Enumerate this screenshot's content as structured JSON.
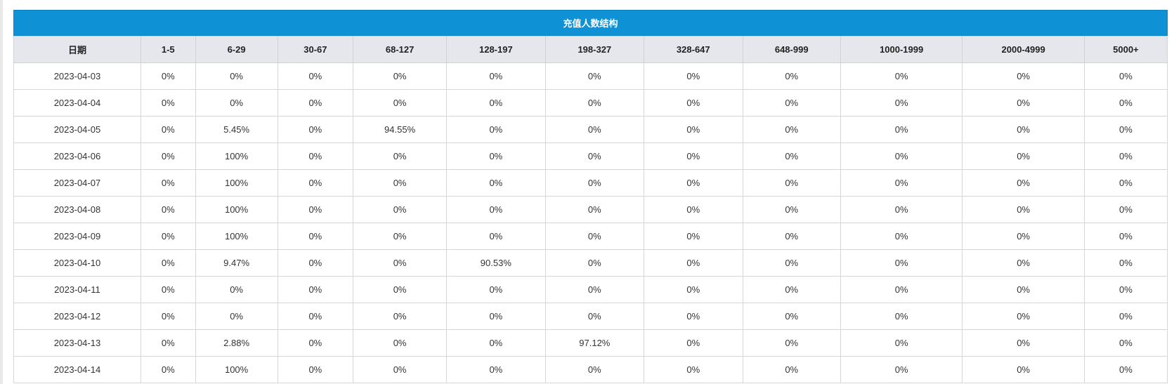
{
  "table": {
    "title": "充值人数结构",
    "headers": [
      "日期",
      "1-5",
      "6-29",
      "30-67",
      "68-127",
      "128-197",
      "198-327",
      "328-647",
      "648-999",
      "1000-1999",
      "2000-4999",
      "5000+"
    ],
    "rows": [
      [
        "2023-04-03",
        "0%",
        "0%",
        "0%",
        "0%",
        "0%",
        "0%",
        "0%",
        "0%",
        "0%",
        "0%",
        "0%"
      ],
      [
        "2023-04-04",
        "0%",
        "0%",
        "0%",
        "0%",
        "0%",
        "0%",
        "0%",
        "0%",
        "0%",
        "0%",
        "0%"
      ],
      [
        "2023-04-05",
        "0%",
        "5.45%",
        "0%",
        "94.55%",
        "0%",
        "0%",
        "0%",
        "0%",
        "0%",
        "0%",
        "0%"
      ],
      [
        "2023-04-06",
        "0%",
        "100%",
        "0%",
        "0%",
        "0%",
        "0%",
        "0%",
        "0%",
        "0%",
        "0%",
        "0%"
      ],
      [
        "2023-04-07",
        "0%",
        "100%",
        "0%",
        "0%",
        "0%",
        "0%",
        "0%",
        "0%",
        "0%",
        "0%",
        "0%"
      ],
      [
        "2023-04-08",
        "0%",
        "100%",
        "0%",
        "0%",
        "0%",
        "0%",
        "0%",
        "0%",
        "0%",
        "0%",
        "0%"
      ],
      [
        "2023-04-09",
        "0%",
        "100%",
        "0%",
        "0%",
        "0%",
        "0%",
        "0%",
        "0%",
        "0%",
        "0%",
        "0%"
      ],
      [
        "2023-04-10",
        "0%",
        "9.47%",
        "0%",
        "0%",
        "90.53%",
        "0%",
        "0%",
        "0%",
        "0%",
        "0%",
        "0%"
      ],
      [
        "2023-04-11",
        "0%",
        "0%",
        "0%",
        "0%",
        "0%",
        "0%",
        "0%",
        "0%",
        "0%",
        "0%",
        "0%"
      ],
      [
        "2023-04-12",
        "0%",
        "0%",
        "0%",
        "0%",
        "0%",
        "0%",
        "0%",
        "0%",
        "0%",
        "0%",
        "0%"
      ],
      [
        "2023-04-13",
        "0%",
        "2.88%",
        "0%",
        "0%",
        "0%",
        "97.12%",
        "0%",
        "0%",
        "0%",
        "0%",
        "0%"
      ],
      [
        "2023-04-14",
        "0%",
        "100%",
        "0%",
        "0%",
        "0%",
        "0%",
        "0%",
        "0%",
        "0%",
        "0%",
        "0%"
      ]
    ]
  },
  "colors": {
    "title_bar": "#0f91d6",
    "header_bg": "#e5e7ec",
    "border": "#d6d6d6"
  }
}
